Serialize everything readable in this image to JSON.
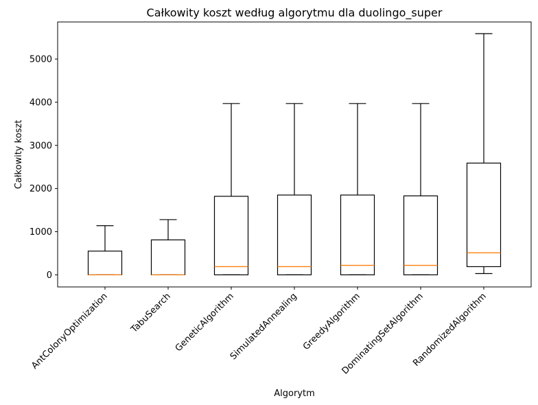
{
  "chart_data": {
    "type": "boxplot",
    "title": "Całkowity koszt według algorytmu dla duolingo_super",
    "xlabel": "Algorytm",
    "ylabel": "Całkowity koszt",
    "ylim": [
      -280,
      5860
    ],
    "yticks": [
      0,
      1000,
      2000,
      3000,
      4000,
      5000
    ],
    "grid": false,
    "categories": [
      "AntColonyOptimization",
      "TabuSearch",
      "GeneticAlgorithm",
      "SimulatedAnnealing",
      "GreedyAlgorithm",
      "DominatingSetAlgorithm",
      "RandomizedAlgorithm"
    ],
    "boxes": [
      {
        "whisker_low": 0,
        "q1": 0,
        "median": 0,
        "q3": 550,
        "whisker_high": 1140
      },
      {
        "whisker_low": 0,
        "q1": 0,
        "median": 0,
        "q3": 810,
        "whisker_high": 1280
      },
      {
        "whisker_low": 0,
        "q1": 0,
        "median": 190,
        "q3": 1820,
        "whisker_high": 3970
      },
      {
        "whisker_low": 0,
        "q1": 0,
        "median": 190,
        "q3": 1850,
        "whisker_high": 3970
      },
      {
        "whisker_low": 0,
        "q1": 0,
        "median": 220,
        "q3": 1850,
        "whisker_high": 3970
      },
      {
        "whisker_low": 0,
        "q1": 0,
        "median": 220,
        "q3": 1830,
        "whisker_high": 3970
      },
      {
        "whisker_low": 30,
        "q1": 190,
        "median": 510,
        "q3": 2590,
        "whisker_high": 5590
      }
    ],
    "colors": {
      "box": "#000000",
      "median": "#ff7f0e",
      "background": "#ffffff"
    }
  }
}
